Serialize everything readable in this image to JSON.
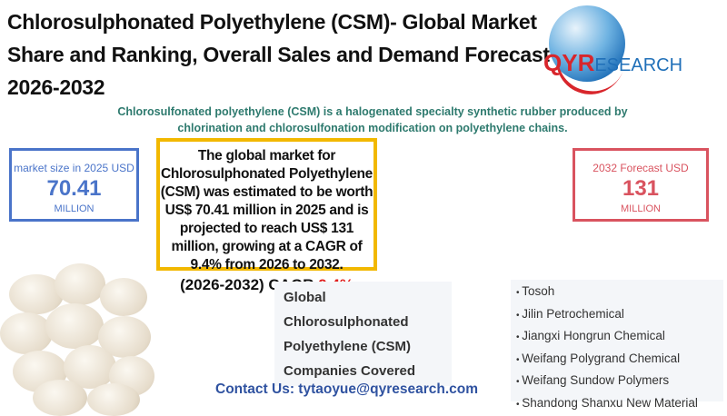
{
  "header": {
    "title": "Chlorosulphonated Polyethylene (CSM)- Global Market Share and Ranking, Overall Sales and Demand Forecast 2026-2032",
    "subtitle": "Chlorosulfonated polyethylene (CSM) is a halogenated specialty synthetic rubber produced by chlorination and chlorosulfonation modification on polyethylene chains."
  },
  "logo": {
    "brand_main": "QYR",
    "brand_rest": "ESEARCH"
  },
  "stat_2025": {
    "label": "market size in 2025 USD",
    "value": "70.41",
    "unit": "MILLION"
  },
  "stat_2032": {
    "label": "2032 Forecast  USD",
    "value": "131",
    "unit": "MILLION"
  },
  "summary": {
    "text": "The global market for Chlorosulphonated Polyethylene (CSM) was estimated to be worth US$ 70.41 million in 2025 and is projected to reach US$ 131 million, growing at a CAGR of 9.4% from 2026 to 2032.",
    "cagr_label": "(2026-2032)  CAGR ",
    "cagr_value": "9.4%"
  },
  "companies": {
    "heading_lines": [
      "Global",
      "Chlorosulphonated",
      "Polyethylene (CSM)",
      "Companies Covered"
    ],
    "list": [
      "Tosoh",
      "Jilin Petrochemical",
      "Jiangxi Hongrun Chemical",
      "Weifang Polygrand Chemical",
      "Weifang Sundow Polymers",
      "Shandong Shanxu New Material"
    ]
  },
  "contact": "Contact Us: tytaoyue@qyresearch.com",
  "colors": {
    "blue": "#4a74c9",
    "red": "#d9535f",
    "yellow": "#f2b800",
    "teal": "#2e7a6e",
    "cagr_red": "#e0201f"
  }
}
